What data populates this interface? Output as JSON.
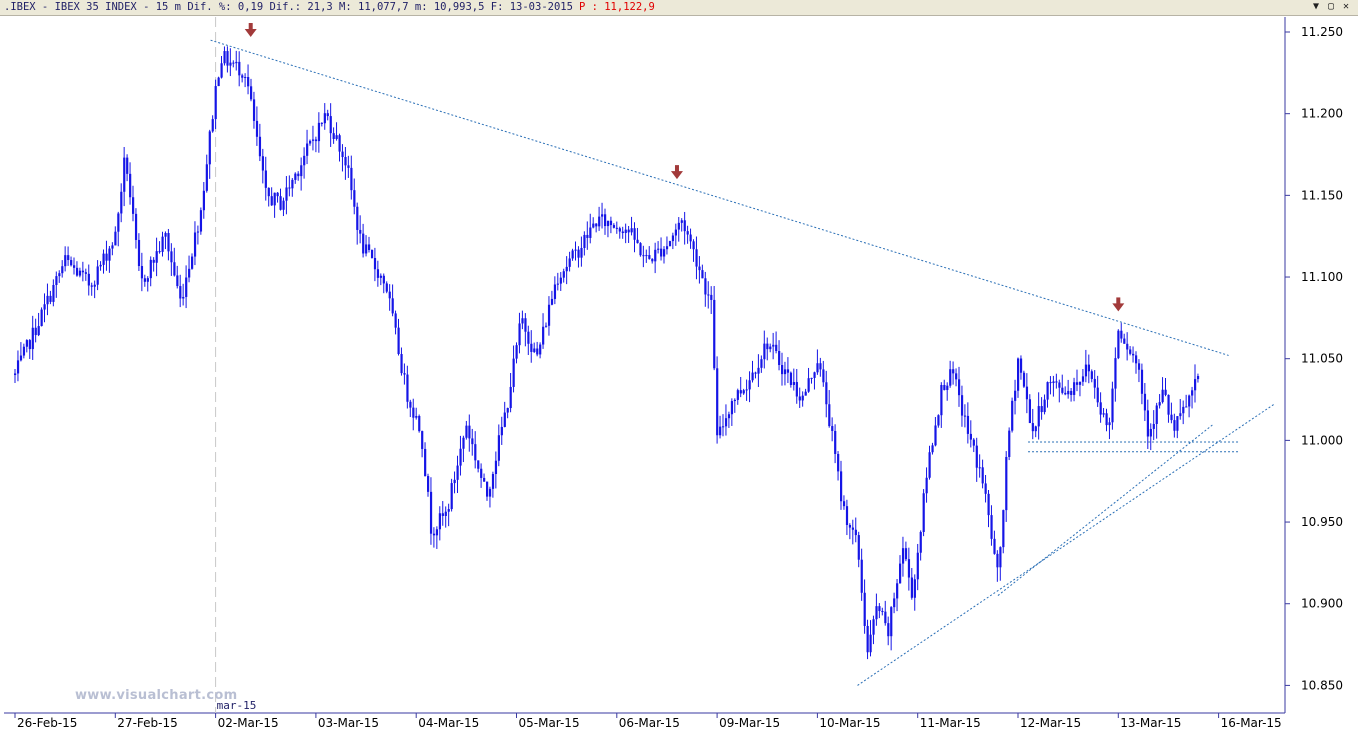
{
  "window": {
    "info": ".IBEX - IBEX 35 INDEX -  15 m Dif. %: 0,19 Dif.: 21,3 M: 11,077,7 m: 10,993,5 F: 13-03-2015",
    "price_label": "P : 11,122,9",
    "buttons": [
      "▼",
      "▢",
      "✕"
    ]
  },
  "watermark": "www.visualchart.com",
  "colors": {
    "candles": "#1515e6",
    "trendline": "#2a6fb6",
    "arrow": "#a23a3a",
    "axis": "#3a3aa0",
    "background": "#ffffff"
  },
  "chart_data": {
    "type": "candlestick",
    "ylim": [
      10825,
      11265
    ],
    "y_ticks": [
      11250,
      11200,
      11150,
      11100,
      11050,
      11000,
      10950,
      10900,
      10850
    ],
    "y_tick_labels": [
      "11.250",
      "11.200",
      "11.150",
      "11.100",
      "11.050",
      "11.000",
      "10.950",
      "10.900",
      "10.850"
    ],
    "x_labels": [
      "26-Feb-15",
      "27-Feb-15",
      "02-Mar-15",
      "03-Mar-15",
      "04-Mar-15",
      "05-Mar-15",
      "06-Mar-15",
      "09-Mar-15",
      "10-Mar-15",
      "11-Mar-15",
      "12-Mar-15",
      "13-Mar-15",
      "16-Mar-15"
    ],
    "month_label": "mar-15",
    "month_label_day": "02-Mar-15",
    "price_path": [
      {
        "date": "26-Feb-15",
        "t": 0.0,
        "price": 11040
      },
      {
        "date": "26-Feb-15",
        "t": 0.25,
        "price": 11075
      },
      {
        "date": "26-Feb-15",
        "t": 0.5,
        "price": 11110
      },
      {
        "date": "26-Feb-15",
        "t": 0.75,
        "price": 11095
      },
      {
        "date": "27-Feb-15",
        "t": 0.0,
        "price": 11125
      },
      {
        "date": "27-Feb-15",
        "t": 0.1,
        "price": 11175
      },
      {
        "date": "27-Feb-15",
        "t": 0.25,
        "price": 11095
      },
      {
        "date": "27-Feb-15",
        "t": 0.5,
        "price": 11125
      },
      {
        "date": "27-Feb-15",
        "t": 0.65,
        "price": 11085
      },
      {
        "date": "27-Feb-15",
        "t": 0.85,
        "price": 11140
      },
      {
        "date": "02-Mar-15",
        "t": 0.0,
        "price": 11215
      },
      {
        "date": "02-Mar-15",
        "t": 0.05,
        "price": 11235
      },
      {
        "date": "02-Mar-15",
        "t": 0.3,
        "price": 11225
      },
      {
        "date": "02-Mar-15",
        "t": 0.5,
        "price": 11150
      },
      {
        "date": "02-Mar-15",
        "t": 0.65,
        "price": 11145
      },
      {
        "date": "02-Mar-15",
        "t": 0.85,
        "price": 11170
      },
      {
        "date": "03-Mar-15",
        "t": 0.1,
        "price": 11200
      },
      {
        "date": "03-Mar-15",
        "t": 0.3,
        "price": 11170
      },
      {
        "date": "03-Mar-15",
        "t": 0.45,
        "price": 11120
      },
      {
        "date": "03-Mar-15",
        "t": 0.7,
        "price": 11095
      },
      {
        "date": "03-Mar-15",
        "t": 0.9,
        "price": 11030
      },
      {
        "date": "04-Mar-15",
        "t": 0.05,
        "price": 11005
      },
      {
        "date": "04-Mar-15",
        "t": 0.15,
        "price": 10945
      },
      {
        "date": "04-Mar-15",
        "t": 0.3,
        "price": 10955
      },
      {
        "date": "04-Mar-15",
        "t": 0.5,
        "price": 11010
      },
      {
        "date": "04-Mar-15",
        "t": 0.7,
        "price": 10965
      },
      {
        "date": "04-Mar-15",
        "t": 0.9,
        "price": 11020
      },
      {
        "date": "05-Mar-15",
        "t": 0.05,
        "price": 11075
      },
      {
        "date": "05-Mar-15",
        "t": 0.2,
        "price": 11050
      },
      {
        "date": "05-Mar-15",
        "t": 0.4,
        "price": 11100
      },
      {
        "date": "05-Mar-15",
        "t": 0.6,
        "price": 11115
      },
      {
        "date": "05-Mar-15",
        "t": 0.8,
        "price": 11135
      },
      {
        "date": "06-Mar-15",
        "t": 0.1,
        "price": 11130
      },
      {
        "date": "06-Mar-15",
        "t": 0.3,
        "price": 11110
      },
      {
        "date": "06-Mar-15",
        "t": 0.5,
        "price": 11120
      },
      {
        "date": "06-Mar-15",
        "t": 0.65,
        "price": 11135
      },
      {
        "date": "06-Mar-15",
        "t": 0.8,
        "price": 11110
      },
      {
        "date": "06-Mar-15",
        "t": 0.95,
        "price": 11080
      },
      {
        "date": "09-Mar-15",
        "t": 0.0,
        "price": 11000
      },
      {
        "date": "09-Mar-15",
        "t": 0.15,
        "price": 11025
      },
      {
        "date": "09-Mar-15",
        "t": 0.3,
        "price": 11035
      },
      {
        "date": "09-Mar-15",
        "t": 0.5,
        "price": 11060
      },
      {
        "date": "09-Mar-15",
        "t": 0.7,
        "price": 11040
      },
      {
        "date": "09-Mar-15",
        "t": 0.85,
        "price": 11025
      },
      {
        "date": "10-Mar-15",
        "t": 0.0,
        "price": 11050
      },
      {
        "date": "10-Mar-15",
        "t": 0.1,
        "price": 11020
      },
      {
        "date": "10-Mar-15",
        "t": 0.25,
        "price": 10960
      },
      {
        "date": "10-Mar-15",
        "t": 0.4,
        "price": 10935
      },
      {
        "date": "10-Mar-15",
        "t": 0.5,
        "price": 10870
      },
      {
        "date": "10-Mar-15",
        "t": 0.6,
        "price": 10900
      },
      {
        "date": "10-Mar-15",
        "t": 0.7,
        "price": 10880
      },
      {
        "date": "10-Mar-15",
        "t": 0.85,
        "price": 10935
      },
      {
        "date": "10-Mar-15",
        "t": 0.95,
        "price": 10905
      },
      {
        "date": "11-Mar-15",
        "t": 0.1,
        "price": 10985
      },
      {
        "date": "11-Mar-15",
        "t": 0.25,
        "price": 11035
      },
      {
        "date": "11-Mar-15",
        "t": 0.35,
        "price": 11040
      },
      {
        "date": "11-Mar-15",
        "t": 0.5,
        "price": 11005
      },
      {
        "date": "11-Mar-15",
        "t": 0.65,
        "price": 10975
      },
      {
        "date": "11-Mar-15",
        "t": 0.8,
        "price": 10915
      },
      {
        "date": "11-Mar-15",
        "t": 0.9,
        "price": 11000
      },
      {
        "date": "12-Mar-15",
        "t": 0.0,
        "price": 11050
      },
      {
        "date": "12-Mar-15",
        "t": 0.15,
        "price": 11005
      },
      {
        "date": "12-Mar-15",
        "t": 0.3,
        "price": 11035
      },
      {
        "date": "12-Mar-15",
        "t": 0.5,
        "price": 11030
      },
      {
        "date": "12-Mar-15",
        "t": 0.7,
        "price": 11045
      },
      {
        "date": "12-Mar-15",
        "t": 0.9,
        "price": 11005
      },
      {
        "date": "13-Mar-15",
        "t": 0.0,
        "price": 11070
      },
      {
        "date": "13-Mar-15",
        "t": 0.2,
        "price": 11045
      },
      {
        "date": "13-Mar-15",
        "t": 0.3,
        "price": 11005
      },
      {
        "date": "13-Mar-15",
        "t": 0.45,
        "price": 11030
      },
      {
        "date": "13-Mar-15",
        "t": 0.55,
        "price": 11005
      },
      {
        "date": "13-Mar-15",
        "t": 0.7,
        "price": 11025
      },
      {
        "date": "13-Mar-15",
        "t": 0.8,
        "price": 11037
      }
    ],
    "trendlines": [
      {
        "kind": "resistance",
        "from": {
          "date": "02-Mar-15",
          "t": -0.05,
          "price": 11245
        },
        "to": {
          "date": "16-Mar-15",
          "t": 0.1,
          "price": 11052
        }
      },
      {
        "kind": "support",
        "from": {
          "date": "10-Mar-15",
          "t": 0.4,
          "price": 10850
        },
        "to": {
          "date": "16-Mar-15",
          "t": 0.55,
          "price": 11022
        }
      },
      {
        "kind": "support-dotted",
        "from": {
          "date": "11-Mar-15",
          "t": 0.8,
          "price": 10905
        },
        "to": {
          "date": "13-Mar-15",
          "t": 0.95,
          "price": 11010
        }
      },
      {
        "kind": "horizontal",
        "from": {
          "date": "12-Mar-15",
          "t": 0.1,
          "price": 10999
        },
        "to": {
          "date": "16-Mar-15",
          "t": 0.2,
          "price": 10999
        }
      },
      {
        "kind": "horizontal",
        "from": {
          "date": "12-Mar-15",
          "t": 0.1,
          "price": 10993
        },
        "to": {
          "date": "16-Mar-15",
          "t": 0.2,
          "price": 10993
        }
      }
    ],
    "arrows": [
      {
        "date": "02-Mar-15",
        "t": 0.35,
        "price": 11250
      },
      {
        "date": "06-Mar-15",
        "t": 0.6,
        "price": 11163
      },
      {
        "date": "13-Mar-15",
        "t": 0.0,
        "price": 11082
      }
    ],
    "grid": false,
    "legend": "none"
  }
}
